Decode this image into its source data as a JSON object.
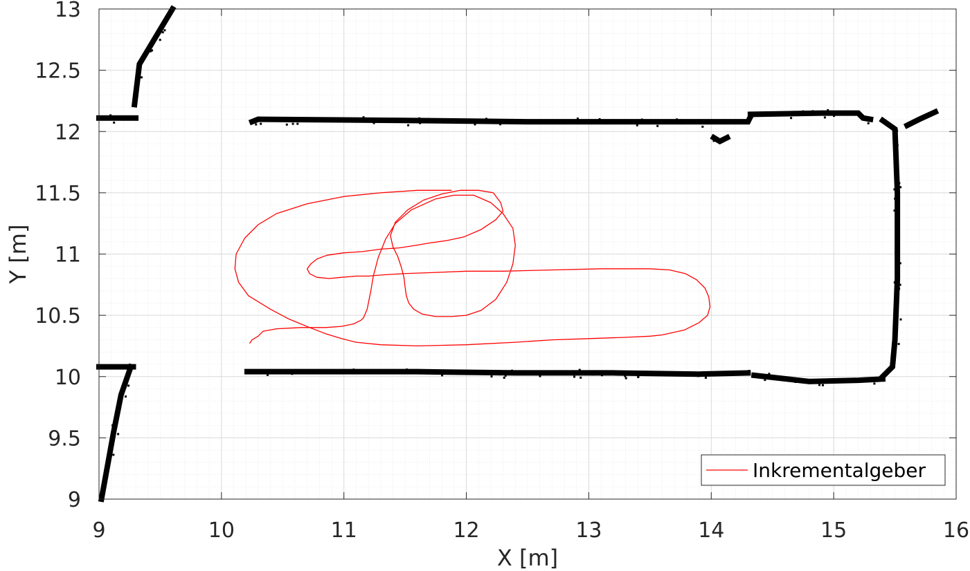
{
  "chart_data": {
    "type": "line",
    "xlabel": "X [m]",
    "ylabel": "Y [m]",
    "xlim": [
      9,
      16
    ],
    "ylim": [
      9,
      13
    ],
    "xticks": [
      "9",
      "10",
      "11",
      "12",
      "13",
      "14",
      "15",
      "16"
    ],
    "yticks": [
      "9",
      "9.5",
      "10",
      "10.5",
      "11",
      "11.5",
      "12",
      "12.5",
      "13"
    ],
    "grid": true,
    "minor_grid": true,
    "legend_position": "bottom-right",
    "colors": {
      "trajectory": "#ff0000",
      "map": "#000000",
      "grid": "#d9d9d9",
      "axis": "#262626"
    },
    "series": [
      {
        "name": "Inkrementalgeber",
        "x": [
          10.23,
          10.25,
          10.3,
          10.34,
          10.45,
          10.65,
          10.85,
          10.98,
          11.08,
          11.14,
          11.16,
          11.19,
          11.22,
          11.24,
          11.28,
          11.34,
          11.42,
          11.55,
          11.75,
          11.9,
          12.06,
          12.2,
          12.3,
          12.38,
          12.4,
          12.38,
          12.33,
          12.24,
          12.12,
          12.0,
          11.88,
          11.75,
          11.64,
          11.57,
          11.53,
          11.51,
          11.5,
          11.49,
          11.47,
          11.44,
          11.4,
          11.38,
          11.42,
          11.52,
          11.65,
          11.8,
          11.95,
          12.1,
          12.22,
          12.28,
          12.3,
          12.24,
          12.12,
          11.98,
          11.84,
          11.7,
          11.58,
          11.45,
          11.3,
          11.15,
          11.0,
          10.86,
          10.78,
          10.73,
          10.7,
          10.72,
          10.78,
          10.88,
          10.98,
          11.1,
          11.2,
          11.32,
          11.48,
          11.75,
          12.0,
          12.3,
          12.7,
          13.1,
          13.5,
          13.66,
          13.79,
          13.88,
          13.95,
          13.98,
          13.99,
          13.97,
          13.9,
          13.78,
          13.6,
          13.5,
          13.3,
          13.0,
          12.7,
          12.4,
          12.0,
          11.6,
          11.3,
          11.1,
          10.98,
          10.85,
          10.72,
          10.55,
          10.4,
          10.22,
          10.14,
          10.11,
          10.12,
          10.19,
          10.3,
          10.45,
          10.7,
          11.0,
          11.3,
          11.6,
          11.8,
          11.88
        ],
        "y": [
          10.27,
          10.3,
          10.33,
          10.37,
          10.39,
          10.4,
          10.4,
          10.41,
          10.43,
          10.46,
          10.48,
          10.55,
          10.7,
          10.82,
          10.97,
          11.12,
          11.25,
          11.36,
          11.45,
          11.48,
          11.48,
          11.42,
          11.33,
          11.21,
          11.07,
          10.92,
          10.77,
          10.63,
          10.54,
          10.5,
          10.49,
          10.49,
          10.51,
          10.55,
          10.6,
          10.66,
          10.73,
          10.81,
          10.89,
          10.98,
          11.06,
          11.15,
          11.26,
          11.36,
          11.44,
          11.49,
          11.52,
          11.52,
          11.5,
          11.42,
          11.35,
          11.28,
          11.2,
          11.14,
          11.11,
          11.09,
          11.07,
          11.05,
          11.04,
          11.02,
          11.01,
          10.99,
          10.96,
          10.92,
          10.88,
          10.84,
          10.81,
          10.8,
          10.81,
          10.82,
          10.82,
          10.83,
          10.84,
          10.85,
          10.86,
          10.86,
          10.87,
          10.88,
          10.88,
          10.87,
          10.84,
          10.79,
          10.72,
          10.65,
          10.57,
          10.5,
          10.44,
          10.38,
          10.34,
          10.33,
          10.32,
          10.31,
          10.3,
          10.28,
          10.26,
          10.25,
          10.26,
          10.28,
          10.31,
          10.35,
          10.4,
          10.47,
          10.55,
          10.66,
          10.77,
          10.88,
          11.0,
          11.13,
          11.24,
          11.33,
          11.41,
          11.47,
          11.5,
          11.52,
          11.52,
          11.52
        ]
      }
    ],
    "map_outline": {
      "segments": [
        {
          "x": [
            9.6,
            9.33,
            9.29
          ],
          "y": [
            13.0,
            12.55,
            12.22
          ]
        },
        {
          "x": [
            9.0,
            9.3
          ],
          "y": [
            12.11,
            12.11
          ]
        },
        {
          "x": [
            9.0,
            9.28
          ],
          "y": [
            10.08,
            10.08
          ]
        },
        {
          "x": [
            9.26,
            9.18,
            9.12,
            9.02
          ],
          "y": [
            10.08,
            9.85,
            9.55,
            9.0
          ]
        },
        {
          "x": [
            10.25,
            10.3,
            11.5,
            12.5,
            13.5,
            14.3,
            14.32
          ],
          "y": [
            12.08,
            12.1,
            12.09,
            12.08,
            12.08,
            12.08,
            12.12
          ]
        },
        {
          "x": [
            14.32,
            14.9,
            15.2,
            15.24,
            15.3
          ],
          "y": [
            12.14,
            12.15,
            12.15,
            12.11,
            12.1
          ]
        },
        {
          "x": [
            15.4,
            15.5,
            15.52,
            15.52,
            15.5,
            15.48,
            15.4
          ],
          "y": [
            12.09,
            12.02,
            11.5,
            10.8,
            10.3,
            10.08,
            10.0
          ]
        },
        {
          "x": [
            15.4,
            15.2,
            14.8,
            14.35
          ],
          "y": [
            9.98,
            9.97,
            9.96,
            10.01
          ]
        },
        {
          "x": [
            10.21,
            10.8,
            11.6,
            12.4,
            13.2,
            13.9,
            14.3
          ],
          "y": [
            10.04,
            10.04,
            10.04,
            10.03,
            10.03,
            10.02,
            10.03
          ]
        },
        {
          "x": [
            14.02,
            14.07,
            14.13
          ],
          "y": [
            11.95,
            11.92,
            11.95
          ]
        },
        {
          "x": [
            15.6,
            15.7,
            15.83
          ],
          "y": [
            12.05,
            12.1,
            12.16
          ]
        }
      ]
    }
  }
}
